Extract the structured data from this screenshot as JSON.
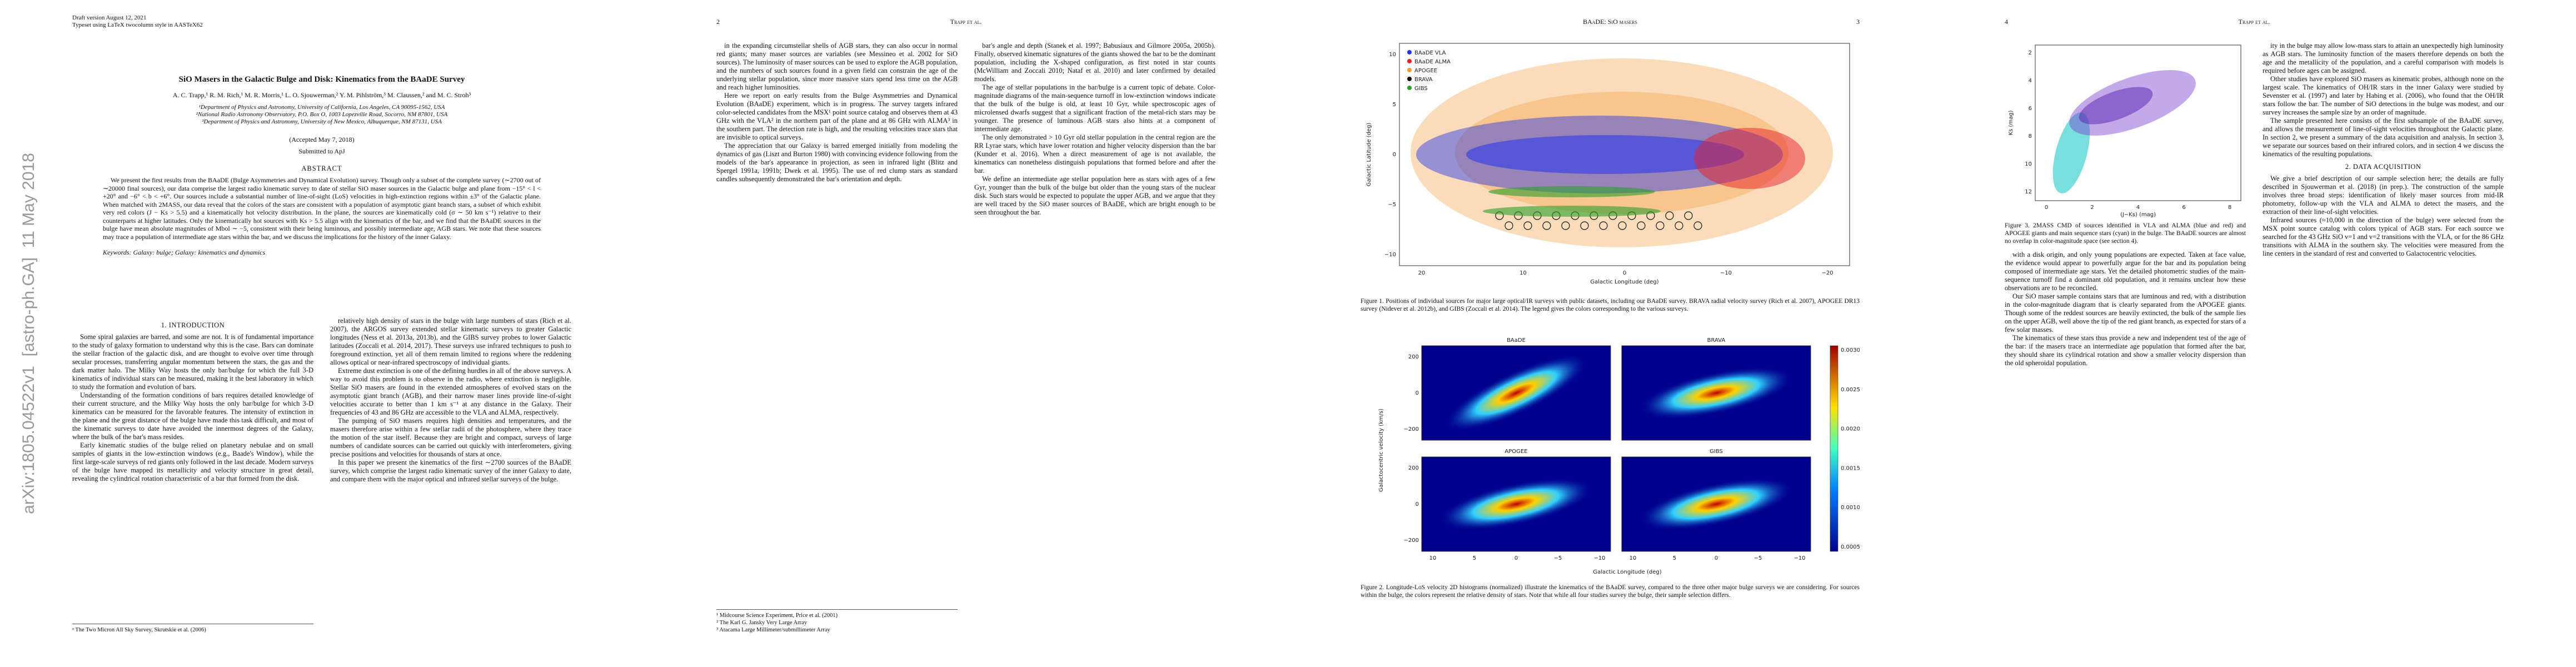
{
  "arxiv_stamp": "arXiv:1805.04522v1  [astro-ph.GA]  11 May 2018",
  "pages": [
    {
      "header": {
        "draft": "Draft version August 12, 2021",
        "typeset": "Typeset using LaTeX twocolumn style in AASTeX62"
      },
      "title": "SiO Masers in the Galactic Bulge and Disk: Kinematics from the BAaDE Survey",
      "authors": "A. C. Trapp,¹ R. M. Rich,¹ M. R. Morris,¹ L. O. Sjouwerman,² Y. M. Pihlström,³ M. Claussen,² and M. C. Stroh³",
      "affiliations": [
        "¹Department of Physics and Astronomy, University of California, Los Angeles, CA 90095-1562, USA",
        "²National Radio Astronomy Observatory, P.O. Box O, 1003 Lopezville Road, Socorro, NM 87801, USA",
        "³Department of Physics and Astronomy, University of New Mexico, Albuquerque, NM 87131, USA"
      ],
      "accepted": "(Accepted May 7, 2018)",
      "submitted": "Submitted to ApJ",
      "abstract_heading": "ABSTRACT",
      "abstract": "We present the first results from the BAaDE (Bulge Asymmetries and Dynamical Evolution) survey. Though only a subset of the complete survey (∼2700 out of ∼20000 final sources), our data comprise the largest radio kinematic survey to date of stellar SiO maser sources in the Galactic bulge and plane from −15° < l < +20° and −6° < b < +6°. Our sources include a substantial number of line-of-sight (LoS) velocities in high-extinction regions within ±3° of the Galactic plane. When matched with 2MASS, our data reveal that the colors of the stars are consistent with a population of asymptotic giant branch stars, a subset of which exhibit very red colors (J − Ks > 5.5) and a kinematically hot velocity distribution. In the plane, the sources are kinematically cold (σ ∼ 50 km s⁻¹) relative to their counterparts at higher latitudes. Only the kinematically hot sources with Ks > 5.5 align with the kinematics of the bar, and we find that the BAaDE sources in the bulge have mean absolute magnitudes of Mbol ∼ −5, consistent with their being luminous, and possibly intermediate age, AGB stars. We note that these sources may trace a population of intermediate age stars within the bar, and we discuss the implications for the history of the inner Galaxy.",
      "keywords": "Keywords: Galaxy: bulge; Galaxy: kinematics and dynamics",
      "columns": [
        [
          {
            "heading": "1. INTRODUCTION"
          },
          {
            "text": "Some spiral galaxies are barred, and some are not. It is of fundamental importance to the study of galaxy formation to understand why this is the case. Bars can dominate the stellar fraction of the galactic disk, and are thought to evolve over time through secular processes, transferring angular momentum between the stars, the gas and the dark matter halo. The Milky Way hosts the only bar/bulge for which the full 3-D kinematics of individual stars can be measured, making it the best laboratory in which to study the formation and evolution of bars."
          },
          {
            "text": "Understanding of the formation conditions of bars requires detailed knowledge of their current structure, and the Milky Way hosts the only bar/bulge for which 3-D kinematics can be measured for the favorable features. The intensity of extinction in the plane and the great distance of the bulge have made this task difficult, and most of the kinematic surveys to date have avoided the innermost degrees of the Galaxy, where the bulk of the bar's mass resides."
          },
          {
            "text": "Early kinematic studies of the bulge relied on planetary nebulae and on small samples of giants in the low-extinction windows (e.g., Baade's Window), while the first large-scale surveys of red giants only followed in the last decade. Modern surveys of the bulge have mapped its metallicity and velocity structure in great detail, revealing the cylindrical rotation characteristic of a bar that formed from the disk."
          },
          {
            "footnote": "ᵃ The Two Micron All Sky Survey, Skrutskie et al. (2006)"
          }
        ],
        [
          {
            "text": "relatively high density of stars in the bulge with large numbers of stars (Rich et al. 2007), the ARGOS survey extended stellar kinematic surveys to greater Galactic longitudes (Ness et al. 2013a, 2013b), and the GIBS survey probes to lower Galactic latitudes (Zoccali et al. 2014, 2017). These surveys use infrared techniques to push to foreground extinction, yet all of them remain limited to regions where the reddening allows optical or near-infrared spectroscopy of individual giants."
          },
          {
            "text": "Extreme dust extinction is one of the defining hurdles in all of the above surveys. A way to avoid this problem is to observe in the radio, where extinction is negligible. Stellar SiO masers are found in the extended atmospheres of evolved stars on the asymptotic giant branch (AGB), and their narrow maser lines provide line-of-sight velocities accurate to better than 1 km s⁻¹ at any distance in the Galaxy. Their frequencies of 43 and 86 GHz are accessible to the VLA and ALMA, respectively."
          },
          {
            "text": "The pumping of SiO masers requires high densities and temperatures, and the masers therefore arise within a few stellar radii of the photosphere, where they trace the motion of the star itself. Because they are bright and compact, surveys of large numbers of candidate sources can be carried out quickly with interferometers, giving precise positions and velocities for thousands of stars at once."
          },
          {
            "text": "In this paper we present the kinematics of the first ∼2700 sources of the BAaDE survey, which comprise the largest radio kinematic survey of the inner Galaxy to date, and compare them with the major optical and infrared stellar surveys of the bulge."
          }
        ]
      ]
    },
    {
      "header": {
        "number": "2",
        "running": "Trapp et al."
      },
      "columns": [
        [
          {
            "text": "in the expanding circumstellar shells of AGB stars, they can also occur in normal red giants; many maser sources are variables (see Messineo et al. 2002 for SiO sources). The luminosity of maser sources can be used to explore the AGB population, and the numbers of such sources found in a given field can constrain the age of the underlying stellar population, since more massive stars spend less time on the AGB and reach higher luminosities."
          },
          {
            "text": "Here we report on early results from the Bulge Asymmetries and Dynamical Evolution (BAaDE) experiment, which is in progress. The survey targets infrared color-selected candidates from the MSX¹ point source catalog and observes them at 43 GHz with the VLA² in the northern part of the plane and at 86 GHz with ALMA³ in the southern part. The detection rate is high, and the resulting velocities trace stars that are invisible to optical surveys."
          },
          {
            "text": "The appreciation that our Galaxy is barred emerged initially from modeling the dynamics of gas (Liszt and Burton 1980) with convincing evidence following from the models of the bar's appearance in projection, as seen in infrared light (Blitz and Spergel 1991a, 1991b; Dwek et al. 1995). The use of red clump stars as standard candles subsequently demonstrated the bar's orientation and depth."
          },
          {
            "footnote": "¹ Midcourse Science Experiment, Price et al. (2001)"
          },
          {
            "footnote": "² The Karl G. Jansky Very Large Array"
          },
          {
            "footnote": "³ Atacama Large Millimeter/submillimeter Array"
          }
        ],
        [
          {
            "text": "bar's angle and depth (Stanek et al. 1997; Babusiaux and Gilmore 2005a, 2005b). Finally, observed kinematic signatures of the giants showed the bar to be the dominant population, including the X-shaped configuration, as first noted in star counts (McWilliam and Zoccali 2010; Nataf et al. 2010) and later confirmed by detailed models."
          },
          {
            "text": "The age of stellar populations in the bar/bulge is a current topic of debate. Color-magnitude diagrams of the main-sequence turnoff in low-extinction windows indicate that the bulk of the bulge is old, at least 10 Gyr, while spectroscopic ages of microlensed dwarfs suggest that a significant fraction of the metal-rich stars may be younger. The presence of luminous AGB stars also hints at a component of intermediate age."
          },
          {
            "text": "The only demonstrated > 10 Gyr old stellar population in the central region are the RR Lyrae stars, which have lower rotation and higher velocity dispersion than the bar (Kunder et al. 2016). When a direct measurement of age is not available, the kinematics can nonetheless distinguish populations that formed before and after the bar."
          },
          {
            "text": "We define an intermediate age stellar population here as stars with ages of a few Gyr, younger than the bulk of the bulge but older than the young stars of the nuclear disk. Such stars would be expected to populate the upper AGB, and we argue that they are well traced by the SiO maser sources of BAaDE, which are bright enough to be seen throughout the bar."
          }
        ]
      ]
    },
    {
      "header": {
        "running": "BAaDE: SiO masers",
        "number": "3"
      },
      "figure1": {
        "legend": [
          {
            "name": "BAaDE VLA",
            "color": "#2233ee"
          },
          {
            "name": "BAaDE ALMA",
            "color": "#e8202a"
          },
          {
            "name": "APOGEE",
            "color": "#f29a3a"
          },
          {
            "name": "BRAVA",
            "color": "#111111"
          },
          {
            "name": "GIBS",
            "color": "#2ca02c"
          }
        ],
        "xlabel": "Galactic Longitude (deg)",
        "ylabel": "Galactic Latitude (deg)",
        "xticks": [
          "20",
          "10",
          "0",
          "−10",
          "−20"
        ],
        "yticks": [
          "10",
          "5",
          "0",
          "−5",
          "−10"
        ],
        "caption": "Figure 1. Positions of individual sources for major large optical/IR surveys with public datasets, including our BAaDE survey. BRAVA radial velocity survey (Rich et al. 2007), APOGEE DR13 survey (Nidever et al. 2012b), and GIBS (Zoccali et al. 2014). The legend gives the colors corresponding to the various surveys."
      },
      "figure2": {
        "panels": [
          "BAaDE",
          "BRAVA",
          "APOGEE",
          "GIBS"
        ],
        "xlabel": "Galactic Longitude (deg)",
        "ylabel": "Galactocentric velocity (km/s)",
        "xticks": [
          "10",
          "5",
          "0",
          "−5",
          "−10"
        ],
        "yticks": [
          "200",
          "0",
          "−200"
        ],
        "cbar_ticks": [
          "0.0030",
          "0.0025",
          "0.0020",
          "0.0015",
          "0.0010",
          "0.0005"
        ],
        "caption": "Figure 2. Longitude-LoS velocity 2D histograms (normalized) illustrate the kinematics of the BAaDE survey, compared to the three other major bulge surveys we are considering. For sources within the bulge, the colors represent the relative density of stars. Note that while all four studies survey the bulge, their sample selection differs."
      }
    },
    {
      "header": {
        "number": "4",
        "running": "Trapp et al."
      },
      "figure3": {
        "xlabel": "(J−Ks) (mag)",
        "ylabel": "Ks (mag)",
        "xticks": [
          "0",
          "2",
          "4",
          "6",
          "8"
        ],
        "yticks": [
          "2",
          "4",
          "6",
          "8",
          "10",
          "12"
        ],
        "caption": "Figure 3. 2MASS CMD of sources identified in VLA and ALMA (blue and red) and APOGEE giants and main sequence stars (cyan) in the bulge. The BAaDE sources are almost no overlap in color-magnitude space (see section 4)."
      },
      "columns": [
        [
          {
            "text": "with a disk origin, and only young populations are expected. Taken at face value, the evidence would appear to powerfully argue for the bar and its population being composed of intermediate age stars. Yet the detailed photometric studies of the main-sequence turnoff find a dominant old population, and it remains unclear how these observations are to be reconciled."
          },
          {
            "text": "Our SiO maser sample contains stars that are luminous and red, with a distribution in the color-magnitude diagram that is clearly separated from the APOGEE giants. Though some of the reddest sources are heavily extincted, the bulk of the sample lies on the upper AGB, well above the tip of the red giant branch, as expected for stars of a few solar masses."
          },
          {
            "text": "The kinematics of these stars thus provide a new and independent test of the age of the bar: if the masers trace an intermediate age population that formed after the bar, they should share its cylindrical rotation and show a smaller velocity dispersion than the old spheroidal population."
          }
        ],
        [
          {
            "text": "ity in the bulge may allow low-mass stars to attain an unexpectedly high luminosity as AGB stars. The luminosity function of the masers therefore depends on both the age and the metallicity of the population, and a careful comparison with models is required before ages can be assigned."
          },
          {
            "text": "Other studies have explored SiO masers as kinematic probes, although none on the largest scale. The kinematics of OH/IR stars in the inner Galaxy were studied by Sevenster et al. (1997) and later by Habing et al. (2006), who found that the OH/IR stars follow the bar. The number of SiO detections in the bulge was modest, and our survey increases the sample size by an order of magnitude."
          },
          {
            "text": "The sample presented here consists of the first subsample of the BAaDE survey, and allows the measurement of line-of-sight velocities throughout the Galactic plane. In section 2, we present a summary of the data acquisition and analysis. In section 3, we separate our sources based on their infrared colors, and in section 4 we discuss the kinematics of the resulting populations."
          },
          {
            "heading": "2. DATA ACQUISITION"
          },
          {
            "text": "We give a brief description of our sample selection here; the details are fully described in Sjouwerman et al. (2018) (in prep.). The construction of the sample involves three broad steps: identification of likely maser sources from mid-IR photometry, follow-up with the VLA and ALMA to detect the masers, and the extraction of their line-of-sight velocities."
          },
          {
            "text": "Infrared sources (≈10,000 in the direction of the bulge) were selected from the MSX point source catalog with colors typical of AGB stars. For each source we searched for the 43 GHz SiO v=1 and v=2 transitions with the VLA, or for the 86 GHz transitions with ALMA in the southern sky. The velocities were measured from the line centers in the standard of rest and converted to Galactocentric velocities."
          }
        ]
      ]
    }
  ]
}
